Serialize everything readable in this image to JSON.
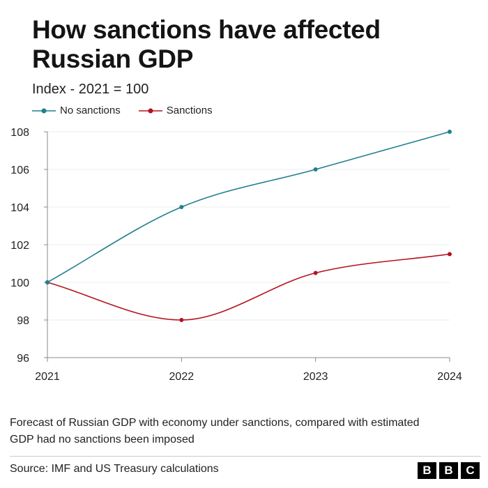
{
  "chart_data": {
    "type": "line",
    "title": "How sanctions have affected Russian GDP",
    "subtitle": "Index - 2021 = 100",
    "x": [
      "2021",
      "2022",
      "2023",
      "2024"
    ],
    "yticks": [
      96,
      98,
      100,
      102,
      104,
      106,
      108
    ],
    "ylim": [
      96,
      108
    ],
    "grid": true,
    "legend_position": "top-left",
    "series": [
      {
        "name": "No sanctions",
        "values": [
          100,
          104,
          106,
          108
        ],
        "color": "#1f7f8f"
      },
      {
        "name": "Sanctions",
        "values": [
          100,
          98,
          100.5,
          101.5
        ],
        "color": "#b4121f"
      }
    ],
    "note": "Forecast of Russian GDP with economy under sanctions, compared with estimated GDP had no sanctions been imposed",
    "source": "Source: IMF and US Treasury calculations"
  },
  "logo": {
    "letters": [
      "B",
      "B",
      "C"
    ]
  }
}
